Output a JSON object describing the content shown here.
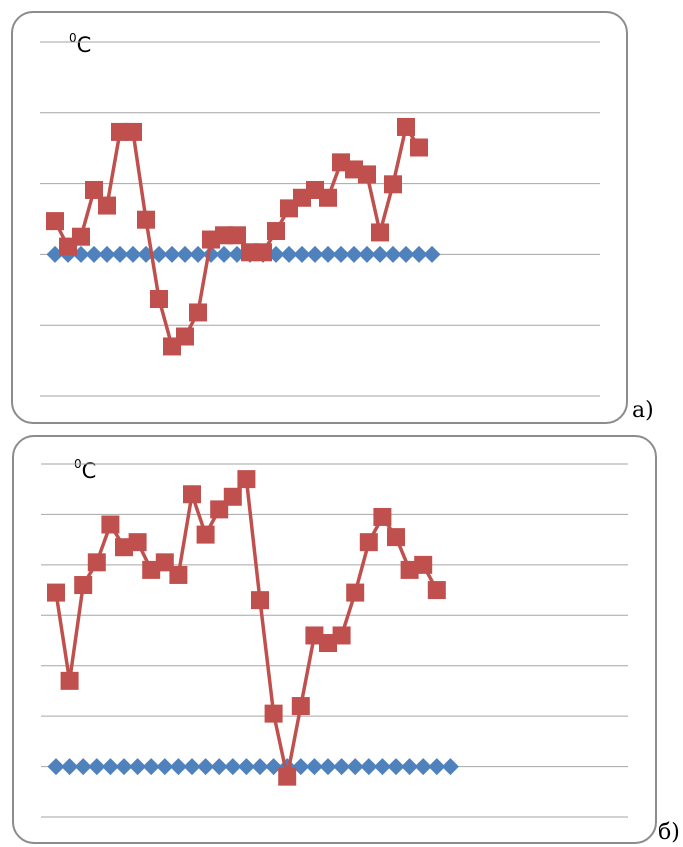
{
  "chart_data": [
    {
      "type": "line",
      "panel_label": "а)",
      "ylabel": "⁰C",
      "colors": {
        "baseline": "#4f81bd",
        "series": "#c0504d",
        "grid": "#a6a6a6"
      },
      "baseline_value": 0,
      "series": [
        {
          "values": [
            0,
            0,
            0,
            0,
            0,
            0,
            0,
            0,
            0,
            0,
            0,
            0,
            0,
            0,
            0,
            0,
            0,
            0,
            0,
            0,
            0,
            0,
            0,
            0,
            0,
            0,
            0,
            0,
            0,
            0
          ]
        },
        {
          "values": [
            0.47,
            0.11,
            0.25,
            0.91,
            0.69,
            1.73,
            1.73,
            0.49,
            -0.63,
            -1.3,
            -1.16,
            -0.82,
            0.21,
            0.27,
            0.27,
            0.03,
            0.03,
            0.33,
            0.65,
            0.8,
            0.91,
            0.8,
            1.3,
            1.2,
            1.13,
            0.31,
            0.99,
            1.8,
            1.51
          ]
        }
      ],
      "ylim": [
        -2,
        3
      ]
    },
    {
      "type": "line",
      "panel_label": "б)",
      "ylabel": "⁰C",
      "colors": {
        "baseline": "#4f81bd",
        "series": "#c0504d",
        "grid": "#a6a6a6"
      },
      "baseline_value": 0,
      "series": [
        {
          "values": [
            0,
            0,
            0,
            0,
            0,
            0,
            0,
            0,
            0,
            0,
            0,
            0,
            0,
            0,
            0,
            0,
            0,
            0,
            0,
            0,
            0,
            0,
            0,
            0,
            0,
            0,
            0,
            0,
            0,
            0
          ]
        },
        {
          "values": [
            3.45,
            1.7,
            3.6,
            4.05,
            4.8,
            4.35,
            4.45,
            3.9,
            4.05,
            3.8,
            5.4,
            4.6,
            5.1,
            5.35,
            5.7,
            3.3,
            1.05,
            -0.2,
            1.2,
            2.6,
            2.45,
            2.6,
            3.45,
            4.45,
            4.95,
            4.55,
            3.9,
            4.0,
            3.5
          ]
        }
      ],
      "ylim": [
        -1,
        6
      ]
    }
  ]
}
